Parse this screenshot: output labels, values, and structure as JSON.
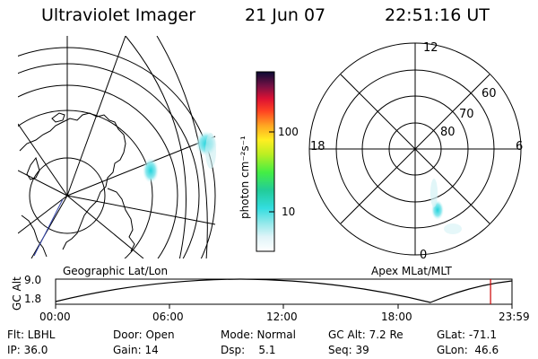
{
  "header": {
    "instrument": "Ultraviolet Imager",
    "date": "21 Jun 07",
    "time": "22:51:16 UT"
  },
  "colorbar": {
    "axis_label": "photon cm⁻²s⁻¹",
    "ticks": [
      "100",
      "10"
    ]
  },
  "polar": {
    "mlt_labels": [
      "12",
      "18",
      "6",
      "0"
    ],
    "lat_labels": [
      "60",
      "70",
      "80"
    ]
  },
  "projections": {
    "left": "Geographic Lat/Lon",
    "right": "Apex MLat/MLT"
  },
  "altitude_plot": {
    "ylabel": "GC Alt",
    "yticks": [
      "9.0",
      "1.8"
    ],
    "xticks": [
      "00:00",
      "06:00",
      "12:00",
      "18:00",
      "23:59"
    ],
    "marker_time_fraction": 0.953
  },
  "info": {
    "filter": "Flt: LBHL",
    "ip": "IP: 36.0",
    "door": "Door: Open",
    "gain": "Gain: 14",
    "mode": "Mode: Normal",
    "dsp": "Dsp:    5.1",
    "gc_alt": "GC Alt: 7.2 Re",
    "seq": "Seq: 39",
    "glat": "GLat: -71.1",
    "glon": "GLon:  46.6"
  },
  "colors": {
    "aurora": "#33dde0",
    "marker": "#cc0000"
  }
}
